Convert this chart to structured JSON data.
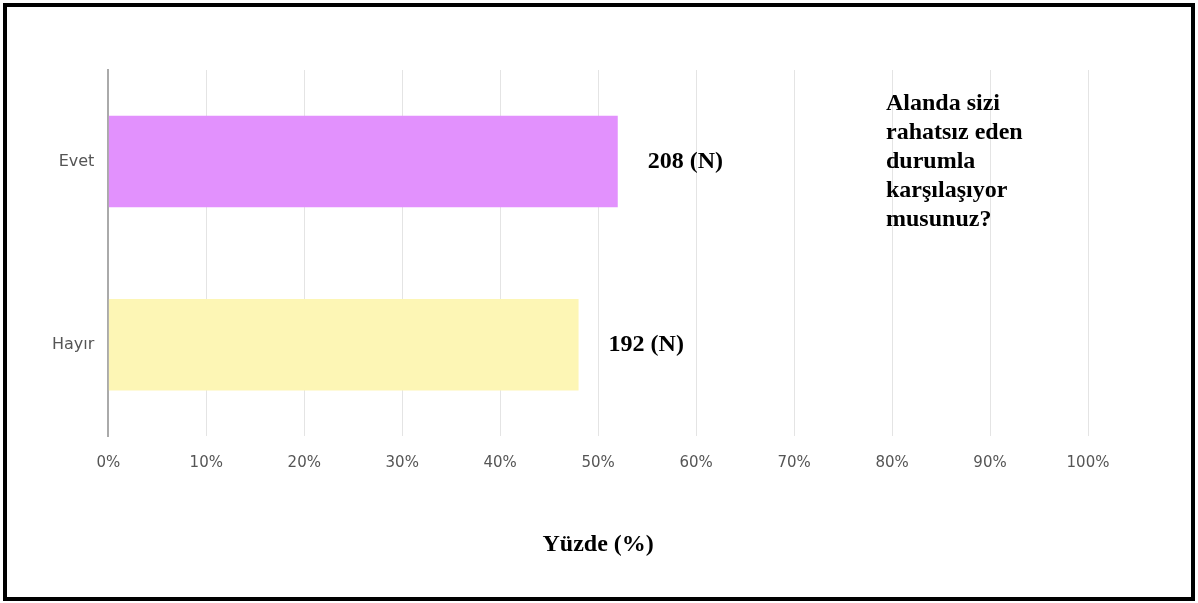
{
  "chart_data": {
    "type": "bar",
    "orientation": "horizontal",
    "title": "Alanda sizi rahatsız eden durumla karşılaşıyor musunuz?",
    "categories": [
      "Evet",
      "Hayır"
    ],
    "values": [
      52,
      48
    ],
    "colors": [
      "#e291fd",
      "#fdf6b5"
    ],
    "annotations": [
      {
        "text": "208 (N)",
        "x": 52,
        "y": "Evet"
      },
      {
        "text": "192 (N)",
        "x": 48,
        "y": "Hayır"
      }
    ],
    "xlabel": "Yüzde (%)",
    "xlim": [
      0,
      100
    ],
    "xticks": [
      {
        "value": 0,
        "label": "0%"
      },
      {
        "value": 10,
        "label": "10%"
      },
      {
        "value": 20,
        "label": "20%"
      },
      {
        "value": 30,
        "label": "30%"
      },
      {
        "value": 40,
        "label": "40%"
      },
      {
        "value": 50,
        "label": "50%"
      },
      {
        "value": 60,
        "label": "60%"
      },
      {
        "value": 70,
        "label": "70%"
      },
      {
        "value": 80,
        "label": "80%"
      },
      {
        "value": 90,
        "label": "90%"
      },
      {
        "value": 100,
        "label": "100%"
      }
    ],
    "grid": "x",
    "legend": false
  }
}
